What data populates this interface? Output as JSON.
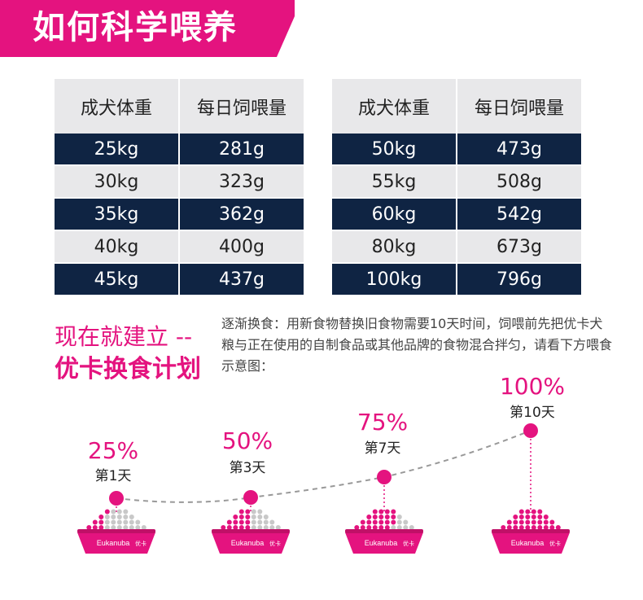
{
  "banner": {
    "title": "如何科学喂养"
  },
  "table_headers": {
    "weight": "成犬体重",
    "amount": "每日饲喂量"
  },
  "left_table": [
    {
      "weight": "25kg",
      "amount": "281g"
    },
    {
      "weight": "30kg",
      "amount": "323g"
    },
    {
      "weight": "35kg",
      "amount": "362g"
    },
    {
      "weight": "40kg",
      "amount": "400g"
    },
    {
      "weight": "45kg",
      "amount": "437g"
    }
  ],
  "right_table": [
    {
      "weight": "50kg",
      "amount": "473g"
    },
    {
      "weight": "55kg",
      "amount": "508g"
    },
    {
      "weight": "60kg",
      "amount": "542g"
    },
    {
      "weight": "80kg",
      "amount": "673g"
    },
    {
      "weight": "100kg",
      "amount": "796g"
    }
  ],
  "slogan": {
    "line1": "现在就建立 --",
    "line2": "优卡换食计划"
  },
  "description": "逐渐换食：用新食物替换旧食物需要10天时间，饲喂前先把优卡犬粮与正在使用的自制食品或其他品牌的食物混合拌匀，请看下方喂食示意图：",
  "stages": [
    {
      "percent": "25%",
      "day": "第1天",
      "ratio": 0.25
    },
    {
      "percent": "50%",
      "day": "第3天",
      "ratio": 0.5
    },
    {
      "percent": "75%",
      "day": "第7天",
      "ratio": 0.75
    },
    {
      "percent": "100%",
      "day": "第10天",
      "ratio": 1.0
    }
  ],
  "bowl_brand": "Eukanuba",
  "bowl_brand_cn": "优卡",
  "colors": {
    "accent": "#e4137f",
    "navy": "#0f2443",
    "light": "#e8e8ea"
  }
}
